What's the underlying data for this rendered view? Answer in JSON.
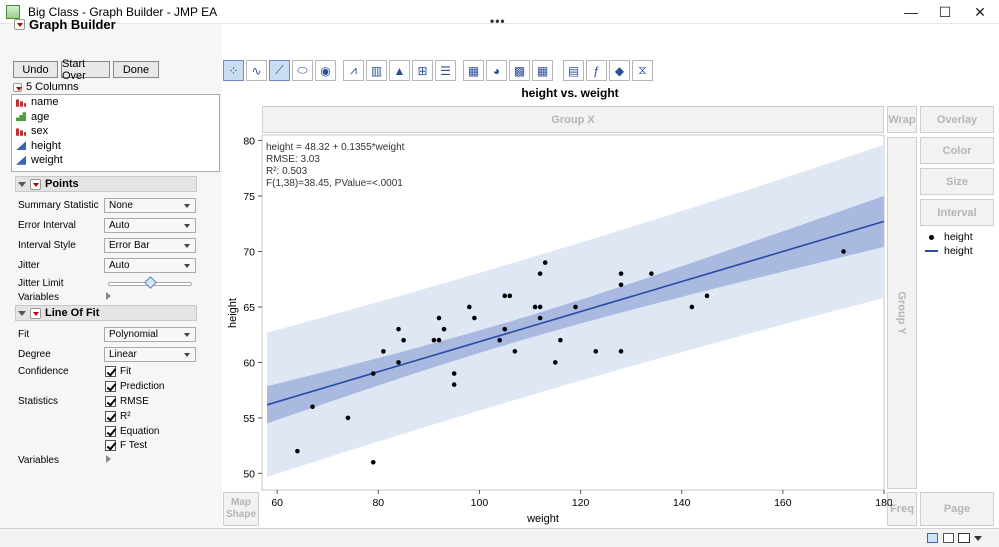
{
  "window": {
    "title": "Big Class - Graph Builder - JMP EA",
    "minimize": "—",
    "maximize": "☐",
    "close": "✕",
    "more": "•••"
  },
  "graph_builder": {
    "title": "Graph Builder",
    "undo": "Undo",
    "start_over": "Start Over",
    "done": "Done"
  },
  "columns": {
    "header": "5 Columns",
    "items": [
      {
        "name": "name",
        "type": "nominal"
      },
      {
        "name": "age",
        "type": "ordinal"
      },
      {
        "name": "sex",
        "type": "nominal"
      },
      {
        "name": "height",
        "type": "continuous"
      },
      {
        "name": "weight",
        "type": "continuous"
      }
    ]
  },
  "points": {
    "header": "Points",
    "summary_statistic": {
      "label": "Summary Statistic",
      "value": "None"
    },
    "error_interval": {
      "label": "Error Interval",
      "value": "Auto"
    },
    "interval_style": {
      "label": "Interval Style",
      "value": "Error Bar"
    },
    "jitter": {
      "label": "Jitter",
      "value": "Auto"
    },
    "jitter_limit": {
      "label": "Jitter Limit",
      "level": 0.5
    },
    "variables": "Variables"
  },
  "line_of_fit": {
    "header": "Line Of Fit",
    "fit": {
      "label": "Fit",
      "value": "Polynomial"
    },
    "degree": {
      "label": "Degree",
      "value": "Linear"
    },
    "confidence_label": "Confidence",
    "confidence": [
      {
        "label": "Fit",
        "checked": true
      },
      {
        "label": "Prediction",
        "checked": true
      }
    ],
    "statistics_label": "Statistics",
    "statistics": [
      {
        "label": "RMSE",
        "checked": true
      },
      {
        "label": "R²",
        "checked": true
      },
      {
        "label": "Equation",
        "checked": true
      },
      {
        "label": "F Test",
        "checked": true
      }
    ],
    "variables": "Variables"
  },
  "zones": {
    "group_x": "Group X",
    "group_y": "Group Y",
    "wrap": "Wrap",
    "overlay": "Overlay",
    "color": "Color",
    "size": "Size",
    "interval": "Interval",
    "freq": "Freq",
    "page": "Page",
    "map_shape": "Map Shape"
  },
  "legend": [
    {
      "label": "height",
      "symbol": "dot"
    },
    {
      "label": "height",
      "symbol": "line"
    }
  ],
  "colors": {
    "fit_line": "#2b4ba3",
    "confidence_band": "#a9b9df",
    "prediction_band": "#dfe6f4",
    "points": "#000000"
  },
  "chart_data": {
    "type": "scatter",
    "title": "height vs. weight",
    "xlabel": "weight",
    "ylabel": "height",
    "xlim": [
      57,
      180
    ],
    "ylim": [
      48.5,
      80.5
    ],
    "xticks": [
      60,
      80,
      100,
      120,
      140,
      160,
      180
    ],
    "yticks": [
      50,
      55,
      60,
      65,
      70,
      75,
      80
    ],
    "annotations": [
      "height = 48.32 + 0.1355*weight",
      "RMSE: 3.03",
      "R²: 0.503",
      "F(1,38)=38.45, PValue=<.0001"
    ],
    "fit": {
      "intercept": 48.32,
      "slope": 0.1355,
      "rmse": 3.03,
      "x_range": [
        58,
        180
      ],
      "ci_halfwidth_at_ends": 2.3,
      "ci_halfwidth_at_mean": 1.0,
      "pi_halfwidth_at_ends": 6.9,
      "pi_halfwidth_at_mean": 6.2,
      "x_mean": 106
    },
    "series": [
      {
        "name": "height",
        "points": [
          [
            64,
            52
          ],
          [
            67,
            56
          ],
          [
            74,
            55
          ],
          [
            79,
            51
          ],
          [
            79,
            59
          ],
          [
            81,
            61
          ],
          [
            84,
            60
          ],
          [
            84,
            63
          ],
          [
            85,
            62
          ],
          [
            91,
            62
          ],
          [
            92,
            64
          ],
          [
            92,
            62
          ],
          [
            93,
            63
          ],
          [
            95,
            59
          ],
          [
            95,
            58
          ],
          [
            98,
            65
          ],
          [
            99,
            64
          ],
          [
            104,
            62
          ],
          [
            105,
            63
          ],
          [
            105,
            66
          ],
          [
            106,
            66
          ],
          [
            107,
            61
          ],
          [
            111,
            65
          ],
          [
            112,
            65
          ],
          [
            112,
            68
          ],
          [
            112,
            64
          ],
          [
            113,
            69
          ],
          [
            115,
            60
          ],
          [
            116,
            62
          ],
          [
            119,
            65
          ],
          [
            123,
            61
          ],
          [
            128,
            61
          ],
          [
            128,
            67
          ],
          [
            128,
            68
          ],
          [
            134,
            68
          ],
          [
            142,
            65
          ],
          [
            145,
            66
          ],
          [
            172,
            70
          ]
        ]
      }
    ]
  }
}
